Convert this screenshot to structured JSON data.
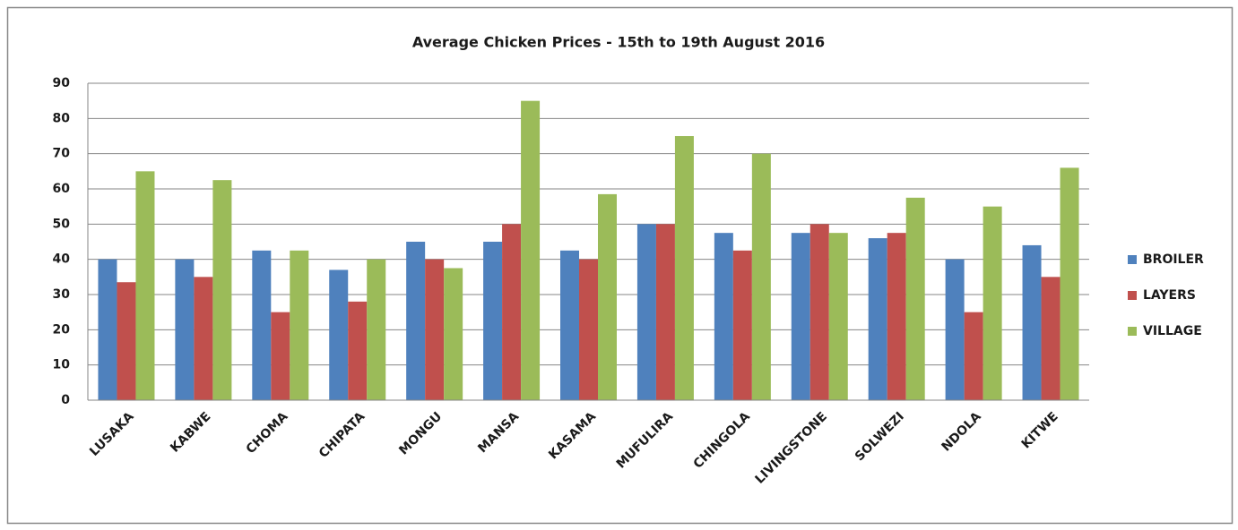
{
  "chart_data": {
    "type": "bar",
    "title": "Average Chicken Prices - 15th to 19th August 2016",
    "categories": [
      "LUSAKA",
      "KABWE",
      "CHOMA",
      "CHIPATA",
      "MONGU",
      "MANSA",
      "KASAMA",
      "MUFULIRA",
      "CHINGOLA",
      "LIVINGSTONE",
      "SOLWEZI",
      "NDOLA",
      "KITWE"
    ],
    "series": [
      {
        "name": "BROILER",
        "color": "#4f81bd",
        "values": [
          40,
          40,
          42.5,
          37,
          45,
          45,
          42.5,
          50,
          47.5,
          47.5,
          46,
          40,
          44
        ]
      },
      {
        "name": "LAYERS",
        "color": "#c0504d",
        "values": [
          33.5,
          35,
          25,
          28,
          40,
          50,
          40,
          50,
          42.5,
          50,
          47.5,
          25,
          35
        ]
      },
      {
        "name": "VILLAGE",
        "color": "#9bbb59",
        "values": [
          65,
          62.5,
          42.5,
          40,
          37.5,
          85,
          58.5,
          75,
          70,
          47.5,
          57.5,
          55,
          66
        ]
      }
    ],
    "ylim": [
      0,
      90
    ],
    "yticks": [
      0,
      10,
      20,
      30,
      40,
      50,
      60,
      70,
      80,
      90
    ],
    "grid": true,
    "legend": "right"
  }
}
